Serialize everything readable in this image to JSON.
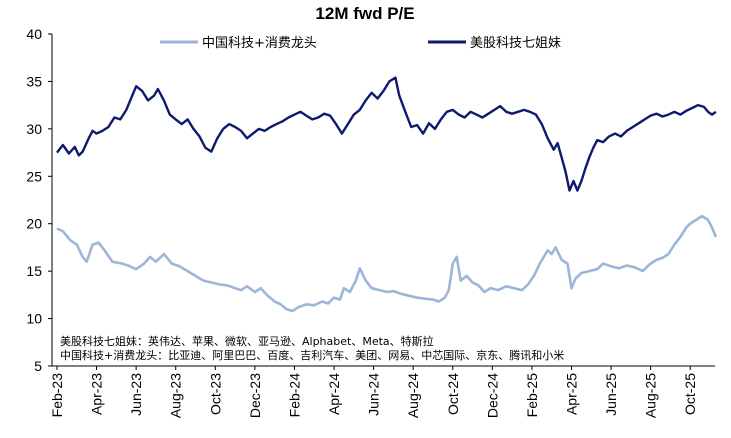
{
  "chart_data": {
    "type": "line",
    "title": "12M fwd P/E",
    "xlabel": "",
    "ylabel": "",
    "ylim": [
      5,
      40
    ],
    "yticks": [
      5,
      10,
      15,
      20,
      25,
      30,
      35,
      40
    ],
    "xlim": [
      0,
      33
    ],
    "xticks": [
      {
        "label": "Feb-23",
        "pos": 0
      },
      {
        "label": "Apr-23",
        "pos": 2
      },
      {
        "label": "Jun-23",
        "pos": 4
      },
      {
        "label": "Aug-23",
        "pos": 6
      },
      {
        "label": "Oct-23",
        "pos": 8
      },
      {
        "label": "Dec-23",
        "pos": 10
      },
      {
        "label": "Feb-24",
        "pos": 12
      },
      {
        "label": "Apr-24",
        "pos": 14
      },
      {
        "label": "Jun-24",
        "pos": 16
      },
      {
        "label": "Aug-24",
        "pos": 18
      },
      {
        "label": "Oct-24",
        "pos": 20
      },
      {
        "label": "Dec-24",
        "pos": 22
      },
      {
        "label": "Feb-25",
        "pos": 24
      },
      {
        "label": "Apr-25",
        "pos": 26
      },
      {
        "label": "Jun-25",
        "pos": 28
      },
      {
        "label": "Aug-25",
        "pos": 30
      },
      {
        "label": "Oct-25",
        "pos": 32
      }
    ],
    "legend_position": "top-center",
    "series": [
      {
        "name": "中国科技+消费龙头",
        "color": "#9db6d8",
        "points": [
          [
            0,
            19.5
          ],
          [
            0.3,
            19.2
          ],
          [
            0.7,
            18.2
          ],
          [
            1.0,
            17.8
          ],
          [
            1.3,
            16.5
          ],
          [
            1.5,
            16.0
          ],
          [
            1.8,
            17.8
          ],
          [
            2.1,
            18.0
          ],
          [
            2.4,
            17.2
          ],
          [
            2.8,
            16.0
          ],
          [
            3.3,
            15.8
          ],
          [
            3.6,
            15.6
          ],
          [
            4.0,
            15.2
          ],
          [
            4.4,
            15.8
          ],
          [
            4.7,
            16.5
          ],
          [
            5.0,
            16.0
          ],
          [
            5.4,
            16.8
          ],
          [
            5.8,
            15.8
          ],
          [
            6.2,
            15.5
          ],
          [
            6.6,
            15.0
          ],
          [
            7.0,
            14.5
          ],
          [
            7.4,
            14.0
          ],
          [
            7.8,
            13.8
          ],
          [
            8.2,
            13.6
          ],
          [
            8.6,
            13.5
          ],
          [
            9.0,
            13.2
          ],
          [
            9.3,
            13.0
          ],
          [
            9.6,
            13.4
          ],
          [
            10.0,
            12.8
          ],
          [
            10.3,
            13.2
          ],
          [
            10.6,
            12.5
          ],
          [
            11.0,
            11.8
          ],
          [
            11.3,
            11.5
          ],
          [
            11.6,
            11.0
          ],
          [
            11.9,
            10.8
          ],
          [
            12.2,
            11.2
          ],
          [
            12.6,
            11.5
          ],
          [
            13.0,
            11.4
          ],
          [
            13.4,
            11.8
          ],
          [
            13.7,
            11.6
          ],
          [
            14.0,
            12.2
          ],
          [
            14.3,
            12.0
          ],
          [
            14.5,
            13.2
          ],
          [
            14.8,
            12.8
          ],
          [
            15.1,
            14.0
          ],
          [
            15.3,
            15.3
          ],
          [
            15.6,
            14.0
          ],
          [
            15.9,
            13.2
          ],
          [
            16.3,
            13.0
          ],
          [
            16.7,
            12.8
          ],
          [
            17.0,
            12.9
          ],
          [
            17.4,
            12.6
          ],
          [
            17.8,
            12.4
          ],
          [
            18.2,
            12.2
          ],
          [
            18.6,
            12.1
          ],
          [
            19.0,
            12.0
          ],
          [
            19.3,
            11.8
          ],
          [
            19.6,
            12.2
          ],
          [
            19.8,
            13.0
          ],
          [
            20.0,
            15.8
          ],
          [
            20.2,
            16.5
          ],
          [
            20.4,
            14.0
          ],
          [
            20.7,
            14.5
          ],
          [
            21.0,
            13.8
          ],
          [
            21.3,
            13.5
          ],
          [
            21.6,
            12.8
          ],
          [
            21.9,
            13.2
          ],
          [
            22.3,
            13.0
          ],
          [
            22.7,
            13.4
          ],
          [
            23.1,
            13.2
          ],
          [
            23.5,
            13.0
          ],
          [
            23.8,
            13.6
          ],
          [
            24.1,
            14.5
          ],
          [
            24.4,
            15.8
          ],
          [
            24.6,
            16.5
          ],
          [
            24.8,
            17.2
          ],
          [
            25.0,
            16.8
          ],
          [
            25.2,
            17.5
          ],
          [
            25.5,
            16.2
          ],
          [
            25.8,
            15.8
          ],
          [
            26.0,
            13.2
          ],
          [
            26.2,
            14.2
          ],
          [
            26.5,
            14.8
          ],
          [
            26.9,
            15.0
          ],
          [
            27.3,
            15.2
          ],
          [
            27.6,
            15.8
          ],
          [
            28.0,
            15.5
          ],
          [
            28.4,
            15.3
          ],
          [
            28.8,
            15.6
          ],
          [
            29.2,
            15.4
          ],
          [
            29.6,
            15.0
          ],
          [
            30.0,
            15.8
          ],
          [
            30.3,
            16.2
          ],
          [
            30.6,
            16.4
          ],
          [
            30.9,
            16.8
          ],
          [
            31.2,
            17.8
          ],
          [
            31.5,
            18.6
          ],
          [
            31.8,
            19.6
          ],
          [
            32.0,
            20.0
          ],
          [
            32.3,
            20.4
          ],
          [
            32.6,
            20.8
          ],
          [
            32.9,
            20.4
          ],
          [
            33.1,
            19.6
          ],
          [
            33.3,
            18.6
          ]
        ]
      },
      {
        "name": "美股科技七姐妹",
        "color": "#0d1a6e",
        "points": [
          [
            0,
            27.5
          ],
          [
            0.3,
            28.3
          ],
          [
            0.6,
            27.4
          ],
          [
            0.9,
            28.1
          ],
          [
            1.1,
            27.2
          ],
          [
            1.3,
            27.6
          ],
          [
            1.6,
            29.0
          ],
          [
            1.8,
            29.8
          ],
          [
            2.0,
            29.5
          ],
          [
            2.3,
            29.8
          ],
          [
            2.6,
            30.2
          ],
          [
            2.9,
            31.2
          ],
          [
            3.2,
            31.0
          ],
          [
            3.5,
            32.0
          ],
          [
            3.8,
            33.5
          ],
          [
            4.0,
            34.5
          ],
          [
            4.3,
            34.0
          ],
          [
            4.6,
            33.0
          ],
          [
            4.9,
            33.5
          ],
          [
            5.1,
            34.2
          ],
          [
            5.4,
            33.0
          ],
          [
            5.7,
            31.5
          ],
          [
            6.0,
            31.0
          ],
          [
            6.3,
            30.5
          ],
          [
            6.6,
            31.0
          ],
          [
            6.9,
            30.0
          ],
          [
            7.2,
            29.2
          ],
          [
            7.5,
            28.0
          ],
          [
            7.8,
            27.6
          ],
          [
            8.1,
            29.0
          ],
          [
            8.4,
            30.0
          ],
          [
            8.7,
            30.5
          ],
          [
            9.0,
            30.2
          ],
          [
            9.3,
            29.8
          ],
          [
            9.6,
            29.0
          ],
          [
            9.9,
            29.5
          ],
          [
            10.2,
            30.0
          ],
          [
            10.5,
            29.8
          ],
          [
            10.8,
            30.2
          ],
          [
            11.1,
            30.5
          ],
          [
            11.4,
            30.8
          ],
          [
            11.7,
            31.2
          ],
          [
            12.0,
            31.5
          ],
          [
            12.3,
            31.8
          ],
          [
            12.6,
            31.4
          ],
          [
            12.9,
            31.0
          ],
          [
            13.2,
            31.2
          ],
          [
            13.5,
            31.6
          ],
          [
            13.8,
            31.4
          ],
          [
            14.1,
            30.5
          ],
          [
            14.4,
            29.5
          ],
          [
            14.7,
            30.5
          ],
          [
            15.0,
            31.5
          ],
          [
            15.3,
            32.0
          ],
          [
            15.6,
            33.0
          ],
          [
            15.9,
            33.8
          ],
          [
            16.2,
            33.2
          ],
          [
            16.5,
            34.0
          ],
          [
            16.8,
            35.0
          ],
          [
            17.1,
            35.4
          ],
          [
            17.3,
            33.5
          ],
          [
            17.6,
            31.8
          ],
          [
            17.9,
            30.2
          ],
          [
            18.2,
            30.4
          ],
          [
            18.5,
            29.5
          ],
          [
            18.8,
            30.6
          ],
          [
            19.1,
            30.0
          ],
          [
            19.4,
            31.0
          ],
          [
            19.7,
            31.8
          ],
          [
            20.0,
            32.0
          ],
          [
            20.3,
            31.5
          ],
          [
            20.6,
            31.2
          ],
          [
            20.9,
            31.8
          ],
          [
            21.2,
            31.5
          ],
          [
            21.5,
            31.2
          ],
          [
            21.8,
            31.6
          ],
          [
            22.1,
            32.0
          ],
          [
            22.4,
            32.4
          ],
          [
            22.7,
            31.8
          ],
          [
            23.0,
            31.6
          ],
          [
            23.3,
            31.8
          ],
          [
            23.6,
            32.0
          ],
          [
            23.9,
            31.8
          ],
          [
            24.2,
            31.5
          ],
          [
            24.5,
            30.5
          ],
          [
            24.8,
            29.0
          ],
          [
            25.1,
            27.8
          ],
          [
            25.3,
            28.5
          ],
          [
            25.5,
            27.0
          ],
          [
            25.7,
            25.5
          ],
          [
            25.9,
            23.5
          ],
          [
            26.1,
            24.5
          ],
          [
            26.3,
            23.5
          ],
          [
            26.5,
            24.5
          ],
          [
            26.7,
            25.8
          ],
          [
            26.9,
            27.0
          ],
          [
            27.1,
            28.0
          ],
          [
            27.3,
            28.8
          ],
          [
            27.6,
            28.6
          ],
          [
            27.9,
            29.2
          ],
          [
            28.2,
            29.5
          ],
          [
            28.5,
            29.2
          ],
          [
            28.8,
            29.8
          ],
          [
            29.1,
            30.2
          ],
          [
            29.4,
            30.6
          ],
          [
            29.7,
            31.0
          ],
          [
            30.0,
            31.4
          ],
          [
            30.3,
            31.6
          ],
          [
            30.6,
            31.3
          ],
          [
            30.9,
            31.5
          ],
          [
            31.2,
            31.8
          ],
          [
            31.5,
            31.5
          ],
          [
            31.8,
            31.9
          ],
          [
            32.1,
            32.2
          ],
          [
            32.4,
            32.5
          ],
          [
            32.7,
            32.3
          ],
          [
            32.9,
            31.8
          ],
          [
            33.1,
            31.5
          ],
          [
            33.3,
            31.8
          ]
        ]
      }
    ],
    "annotations": [
      "美股科技七姐妹：英伟达、苹果、微软、亚马逊、Alphabet、Meta、特斯拉",
      "中国科技+消费龙头：比亚迪、阿里巴巴、百度、吉利汽车、美团、网易、中芯国际、京东、腾讯和小米"
    ]
  }
}
